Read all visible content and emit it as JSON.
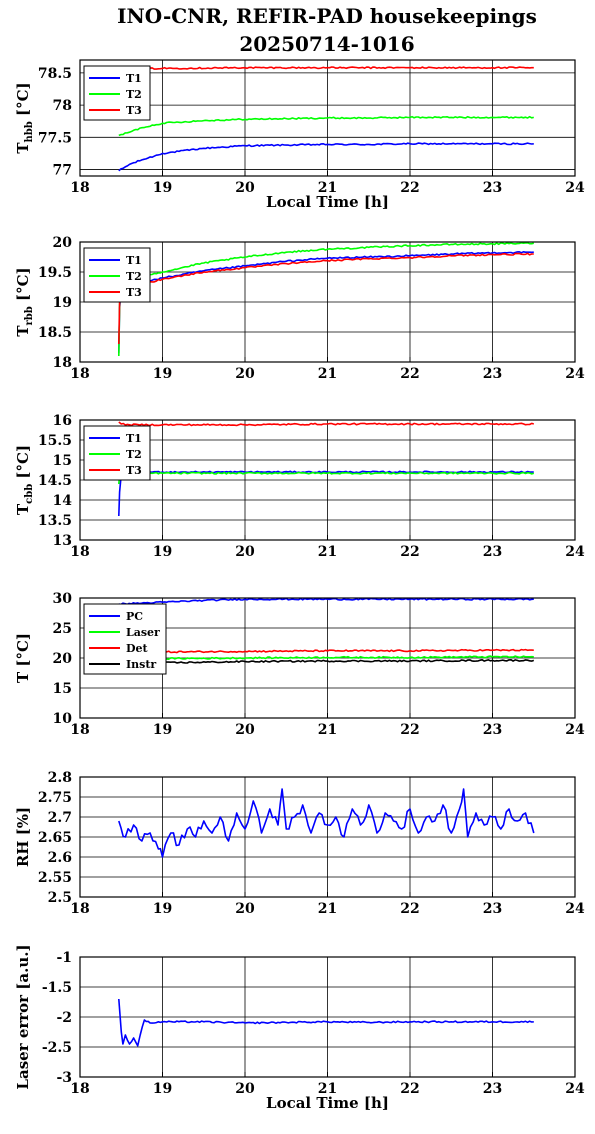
{
  "page": {
    "title_line1": "INO-CNR, REFIR-PAD housekeepings",
    "title_line2": "20250714-1016"
  },
  "chart_data": [
    {
      "type": "line",
      "ylabel_main": "T",
      "ylabel_sub": "hbb",
      "ylabel_unit": " [°C]",
      "xlabel": "Local Time [h]",
      "xlim": [
        18,
        24
      ],
      "ylim": [
        76.9,
        78.7
      ],
      "xticks": [
        18,
        19,
        20,
        21,
        22,
        23,
        24
      ],
      "yticks": [
        77,
        77.5,
        78,
        78.5
      ],
      "ytick_labels": [
        "77",
        "77.5",
        "78",
        "78.5"
      ],
      "grid": true,
      "legend": "top-left",
      "series": [
        {
          "name": "T1",
          "color": "#0000ff",
          "x": [
            18.47,
            18.6,
            18.75,
            19.0,
            19.5,
            20.0,
            20.5,
            21.0,
            21.5,
            22.0,
            22.5,
            23.0,
            23.5
          ],
          "y": [
            76.98,
            77.08,
            77.15,
            77.25,
            77.33,
            77.37,
            77.38,
            77.39,
            77.39,
            77.4,
            77.4,
            77.4,
            77.4
          ]
        },
        {
          "name": "T2",
          "color": "#00ff00",
          "x": [
            18.47,
            18.6,
            18.75,
            19.0,
            19.5,
            20.0,
            20.5,
            21.0,
            21.5,
            22.0,
            22.5,
            23.0,
            23.5
          ],
          "y": [
            77.53,
            77.58,
            77.65,
            77.72,
            77.76,
            77.78,
            77.79,
            77.8,
            77.8,
            77.81,
            77.81,
            77.81,
            77.81
          ]
        },
        {
          "name": "T3",
          "color": "#ff0000",
          "x": [
            18.47,
            18.6,
            19.0,
            20.0,
            21.0,
            22.0,
            23.0,
            23.5
          ],
          "y": [
            78.55,
            78.56,
            78.57,
            78.58,
            78.58,
            78.58,
            78.58,
            78.58
          ]
        }
      ]
    },
    {
      "type": "line",
      "ylabel_main": "T",
      "ylabel_sub": "rbb",
      "ylabel_unit": " [°C]",
      "xlabel": "",
      "xlim": [
        18,
        24
      ],
      "ylim": [
        18,
        20
      ],
      "xticks": [
        18,
        19,
        20,
        21,
        22,
        23,
        24
      ],
      "yticks": [
        18,
        18.5,
        19,
        19.5,
        20
      ],
      "ytick_labels": [
        "18",
        "18.5",
        "19",
        "19.5",
        "20"
      ],
      "grid": true,
      "legend": "top-left",
      "series": [
        {
          "name": "T1",
          "color": "#0000ff",
          "x": [
            18.47,
            18.48,
            18.5,
            18.6,
            19.0,
            19.5,
            20.0,
            20.5,
            21.0,
            21.5,
            22.0,
            22.5,
            23.0,
            23.5
          ],
          "y": [
            18.15,
            18.9,
            19.2,
            19.28,
            19.4,
            19.52,
            19.6,
            19.68,
            19.73,
            19.75,
            19.77,
            19.8,
            19.82,
            19.83
          ]
        },
        {
          "name": "T2",
          "color": "#00ff00",
          "x": [
            18.47,
            18.48,
            18.5,
            18.6,
            19.0,
            19.5,
            20.0,
            20.5,
            21.0,
            21.5,
            22.0,
            22.5,
            23.0,
            23.5
          ],
          "y": [
            18.1,
            18.95,
            19.3,
            19.4,
            19.5,
            19.65,
            19.75,
            19.83,
            19.88,
            19.91,
            19.94,
            19.96,
            19.97,
            19.98
          ]
        },
        {
          "name": "T3",
          "color": "#ff0000",
          "x": [
            18.47,
            18.48,
            18.5,
            18.6,
            19.0,
            19.5,
            20.0,
            20.5,
            21.0,
            21.5,
            22.0,
            22.5,
            23.0,
            23.5
          ],
          "y": [
            18.3,
            19.0,
            19.2,
            19.25,
            19.38,
            19.5,
            19.57,
            19.64,
            19.69,
            19.72,
            19.74,
            19.77,
            19.79,
            19.8
          ]
        }
      ]
    },
    {
      "type": "line",
      "ylabel_main": "T",
      "ylabel_sub": "cbb",
      "ylabel_unit": " [°C]",
      "xlabel": "",
      "xlim": [
        18,
        24
      ],
      "ylim": [
        13,
        16
      ],
      "xticks": [
        18,
        19,
        20,
        21,
        22,
        23,
        24
      ],
      "yticks": [
        13,
        13.5,
        14,
        14.5,
        15,
        15.5,
        16
      ],
      "ytick_labels": [
        "13",
        "13.5",
        "14",
        "14.5",
        "15",
        "15.5",
        "16"
      ],
      "grid": true,
      "legend": "top-left",
      "series": [
        {
          "name": "T1",
          "color": "#0000ff",
          "x": [
            18.47,
            18.48,
            18.5,
            18.6,
            19.0,
            20.0,
            21.0,
            22.0,
            23.0,
            23.5
          ],
          "y": [
            13.6,
            14.2,
            14.65,
            14.7,
            14.7,
            14.7,
            14.7,
            14.7,
            14.7,
            14.7
          ]
        },
        {
          "name": "T2",
          "color": "#00ff00",
          "x": [
            18.47,
            18.48,
            18.5,
            18.6,
            19.0,
            20.0,
            21.0,
            22.0,
            23.0,
            23.5
          ],
          "y": [
            14.4,
            14.6,
            14.65,
            14.67,
            14.67,
            14.67,
            14.67,
            14.67,
            14.67,
            14.67
          ]
        },
        {
          "name": "T3",
          "color": "#ff0000",
          "x": [
            18.47,
            18.5,
            18.6,
            19.0,
            20.0,
            21.0,
            22.0,
            23.0,
            23.5
          ],
          "y": [
            15.95,
            15.9,
            15.88,
            15.88,
            15.88,
            15.9,
            15.9,
            15.9,
            15.9
          ]
        }
      ]
    },
    {
      "type": "line",
      "ylabel_main": "T [°C]",
      "ylabel_sub": "",
      "ylabel_unit": "",
      "xlabel": "",
      "xlim": [
        18,
        24
      ],
      "ylim": [
        10,
        30
      ],
      "xticks": [
        18,
        19,
        20,
        21,
        22,
        23,
        24
      ],
      "yticks": [
        10,
        15,
        20,
        25,
        30
      ],
      "ytick_labels": [
        "10",
        "15",
        "20",
        "25",
        "30"
      ],
      "grid": true,
      "legend": "top-left",
      "series": [
        {
          "name": "PC",
          "color": "#0000ff",
          "x": [
            18.47,
            19.0,
            19.5,
            20.0,
            21.0,
            22.0,
            23.0,
            23.5
          ],
          "y": [
            29.0,
            29.3,
            29.6,
            29.8,
            29.8,
            29.8,
            29.8,
            29.8
          ]
        },
        {
          "name": "Laser",
          "color": "#00ff00",
          "x": [
            18.47,
            19.0,
            20.0,
            21.0,
            22.0,
            23.0,
            23.5
          ],
          "y": [
            19.7,
            19.9,
            20.0,
            20.1,
            20.1,
            20.2,
            20.2
          ]
        },
        {
          "name": "Det",
          "color": "#ff0000",
          "x": [
            18.47,
            19.0,
            20.0,
            21.0,
            22.0,
            23.0,
            23.5
          ],
          "y": [
            20.8,
            21.0,
            21.1,
            21.2,
            21.2,
            21.3,
            21.3
          ]
        },
        {
          "name": "Instr",
          "color": "#000000",
          "x": [
            18.47,
            19.0,
            20.0,
            21.0,
            22.0,
            23.0,
            23.5
          ],
          "y": [
            19.0,
            19.2,
            19.4,
            19.5,
            19.5,
            19.6,
            19.6
          ]
        }
      ]
    },
    {
      "type": "line",
      "ylabel_main": "RH [%]",
      "ylabel_sub": "",
      "ylabel_unit": "",
      "xlabel": "",
      "xlim": [
        18,
        24
      ],
      "ylim": [
        2.5,
        2.8
      ],
      "xticks": [
        18,
        19,
        20,
        21,
        22,
        23,
        24
      ],
      "yticks": [
        2.5,
        2.55,
        2.6,
        2.65,
        2.7,
        2.75,
        2.8
      ],
      "ytick_labels": [
        "2.5",
        "2.55",
        "2.6",
        "2.65",
        "2.7",
        "2.75",
        "2.8"
      ],
      "grid": true,
      "legend": "none",
      "series": [
        {
          "color": "#0000ff",
          "x": [
            18.47,
            18.55,
            18.65,
            18.75,
            18.85,
            18.95,
            19.0,
            19.1,
            19.2,
            19.3,
            19.4,
            19.5,
            19.6,
            19.7,
            19.8,
            19.9,
            20.0,
            20.1,
            20.2,
            20.3,
            20.4,
            20.45,
            20.5,
            20.6,
            20.7,
            20.8,
            20.9,
            21.0,
            21.1,
            21.2,
            21.3,
            21.4,
            21.5,
            21.6,
            21.7,
            21.8,
            21.9,
            22.0,
            22.1,
            22.2,
            22.3,
            22.4,
            22.5,
            22.6,
            22.65,
            22.7,
            22.8,
            22.9,
            23.0,
            23.1,
            23.2,
            23.3,
            23.4,
            23.5
          ],
          "y": [
            2.69,
            2.65,
            2.68,
            2.64,
            2.66,
            2.62,
            2.6,
            2.66,
            2.63,
            2.67,
            2.65,
            2.69,
            2.66,
            2.7,
            2.64,
            2.71,
            2.67,
            2.74,
            2.66,
            2.72,
            2.68,
            2.77,
            2.67,
            2.7,
            2.73,
            2.66,
            2.71,
            2.68,
            2.7,
            2.65,
            2.72,
            2.68,
            2.73,
            2.66,
            2.71,
            2.69,
            2.67,
            2.72,
            2.66,
            2.7,
            2.69,
            2.73,
            2.66,
            2.72,
            2.77,
            2.65,
            2.71,
            2.68,
            2.7,
            2.67,
            2.72,
            2.69,
            2.71,
            2.66
          ]
        }
      ]
    },
    {
      "type": "line",
      "ylabel_main": "Laser error [a.u.]",
      "ylabel_sub": "",
      "ylabel_unit": "",
      "xlabel": "Local Time [h]",
      "xlim": [
        18,
        24
      ],
      "ylim": [
        -3,
        -1
      ],
      "xticks": [
        18,
        19,
        20,
        21,
        22,
        23,
        24
      ],
      "yticks": [
        -3,
        -2.5,
        -2,
        -1.5,
        -1
      ],
      "ytick_labels": [
        "-3",
        "-2.5",
        "-2",
        "-1.5",
        "-1"
      ],
      "grid": true,
      "legend": "none",
      "series": [
        {
          "color": "#0000ff",
          "x": [
            18.47,
            18.5,
            18.52,
            18.55,
            18.6,
            18.65,
            18.7,
            18.73,
            18.78,
            18.85,
            19.0,
            19.5,
            20.0,
            20.5,
            21.0,
            21.5,
            22.0,
            22.5,
            23.0,
            23.5
          ],
          "y": [
            -1.7,
            -2.25,
            -2.45,
            -2.3,
            -2.45,
            -2.35,
            -2.48,
            -2.3,
            -2.05,
            -2.1,
            -2.08,
            -2.08,
            -2.1,
            -2.09,
            -2.08,
            -2.09,
            -2.08,
            -2.08,
            -2.08,
            -2.08
          ]
        }
      ]
    }
  ]
}
